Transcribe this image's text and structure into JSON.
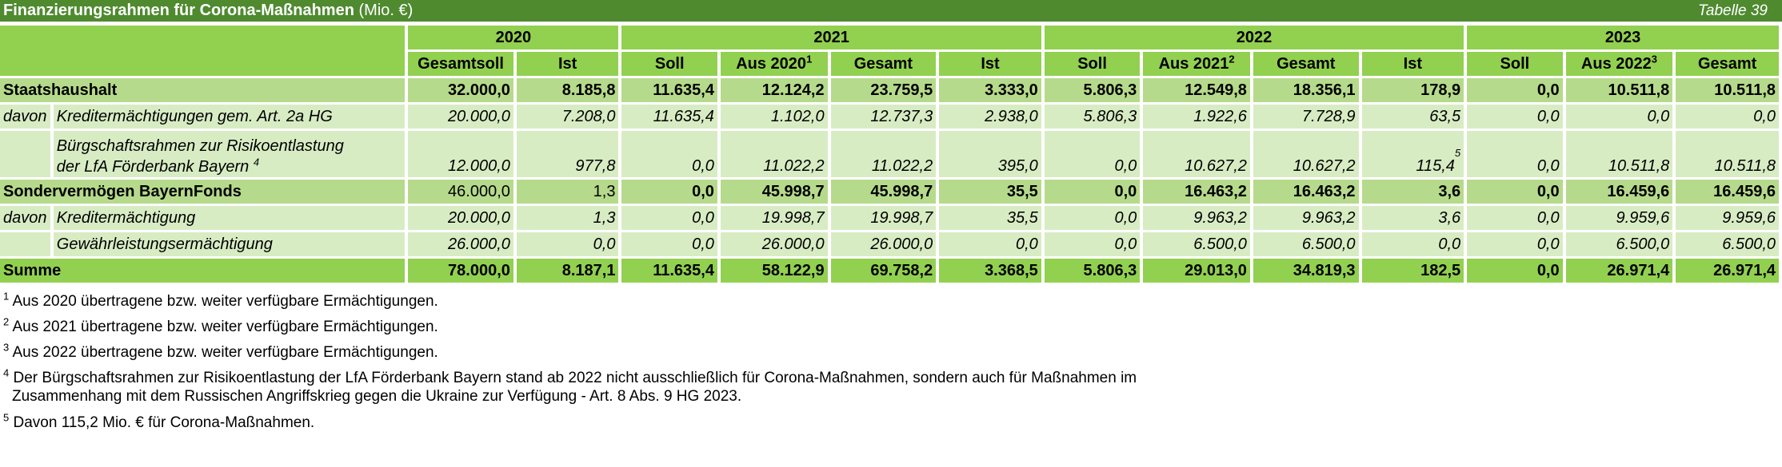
{
  "title": {
    "main": "Finanzierungsrahmen für Corona-Maßnahmen",
    "unit": "(Mio. €)",
    "table_no": "Tabelle 39"
  },
  "years": [
    "2020",
    "2021",
    "2022",
    "2023"
  ],
  "columns": [
    {
      "label": "Gesamtsoll",
      "sup": ""
    },
    {
      "label": "Ist",
      "sup": ""
    },
    {
      "label": "Soll",
      "sup": ""
    },
    {
      "label": "Aus 2020",
      "sup": "1"
    },
    {
      "label": "Gesamt",
      "sup": ""
    },
    {
      "label": "Ist",
      "sup": ""
    },
    {
      "label": "Soll",
      "sup": ""
    },
    {
      "label": "Aus 2021",
      "sup": "2"
    },
    {
      "label": "Gesamt",
      "sup": ""
    },
    {
      "label": "Ist",
      "sup": ""
    },
    {
      "label": "Soll",
      "sup": ""
    },
    {
      "label": "Aus 2022",
      "sup": "3"
    },
    {
      "label": "Gesamt",
      "sup": ""
    }
  ],
  "rows": {
    "staatshaushalt": {
      "label": "Staatshaushalt",
      "values": [
        "32.000,0",
        "8.185,8",
        "11.635,4",
        "12.124,2",
        "23.759,5",
        "3.333,0",
        "5.806,3",
        "12.549,8",
        "18.356,1",
        "178,9",
        "0,0",
        "10.511,8",
        "10.511,8"
      ]
    },
    "kredit_hg": {
      "davon": "davon",
      "label": "Kreditermächtigungen gem. Art. 2a HG",
      "values": [
        "20.000,0",
        "7.208,0",
        "11.635,4",
        "1.102,0",
        "12.737,3",
        "2.938,0",
        "5.806,3",
        "1.922,6",
        "7.728,9",
        "63,5",
        "0,0",
        "0,0",
        "0,0"
      ]
    },
    "buergschaft": {
      "label_line1": "Bürgschaftsrahmen zur Risikoentlastung",
      "label_line2": "der LfA Förderbank Bayern",
      "label_sup": "4",
      "values": [
        "12.000,0",
        "977,8",
        "0,0",
        "11.022,2",
        "11.022,2",
        "395,0",
        "0,0",
        "10.627,2",
        "10.627,2",
        "115,4",
        "0,0",
        "10.511,8",
        "10.511,8"
      ],
      "ist_2022_sup": "5"
    },
    "sondervermoegen": {
      "label": "Sondervermögen BayernFonds",
      "values": [
        "46.000,0",
        "1,3",
        "0,0",
        "45.998,7",
        "45.998,7",
        "35,5",
        "0,0",
        "16.463,2",
        "16.463,2",
        "3,6",
        "0,0",
        "16.459,6",
        "16.459,6"
      ]
    },
    "kredit": {
      "davon": "davon",
      "label": "Kreditermächtigung",
      "values": [
        "20.000,0",
        "1,3",
        "0,0",
        "19.998,7",
        "19.998,7",
        "35,5",
        "0,0",
        "9.963,2",
        "9.963,2",
        "3,6",
        "0,0",
        "9.959,6",
        "9.959,6"
      ]
    },
    "gewaehr": {
      "label": "Gewährleistungsermächtigung",
      "values": [
        "26.000,0",
        "0,0",
        "0,0",
        "26.000,0",
        "26.000,0",
        "0,0",
        "0,0",
        "6.500,0",
        "6.500,0",
        "0,0",
        "0,0",
        "6.500,0",
        "6.500,0"
      ]
    },
    "summe": {
      "label": "Summe",
      "values": [
        "78.000,0",
        "8.187,1",
        "11.635,4",
        "58.122,9",
        "69.758,2",
        "3.368,5",
        "5.806,3",
        "29.013,0",
        "34.819,3",
        "182,5",
        "0,0",
        "26.971,4",
        "26.971,4"
      ]
    }
  },
  "footnotes": [
    {
      "num": "1",
      "text": "Aus 2020 übertragene bzw. weiter verfügbare Ermächtigungen."
    },
    {
      "num": "2",
      "text": "Aus 2021 übertragene bzw. weiter verfügbare Ermächtigungen."
    },
    {
      "num": "3",
      "text": "Aus 2022 übertragene bzw. weiter verfügbare Ermächtigungen."
    },
    {
      "num": "4",
      "line1": "Der Bürgschaftsrahmen zur Risikoentlastung der LfA Förderbank Bayern stand ab 2022 nicht ausschließlich für Corona-Maßnahmen, sondern auch für Maßnahmen im",
      "line2": "Zusammenhang mit dem Russischen Angriffskrieg   gegen die Ukraine zur Verfügung - Art. 8 Abs. 9 HG 2023."
    },
    {
      "num": "5",
      "text": "Davon 115,2 Mio. € für Corona-Maßnahmen."
    }
  ]
}
